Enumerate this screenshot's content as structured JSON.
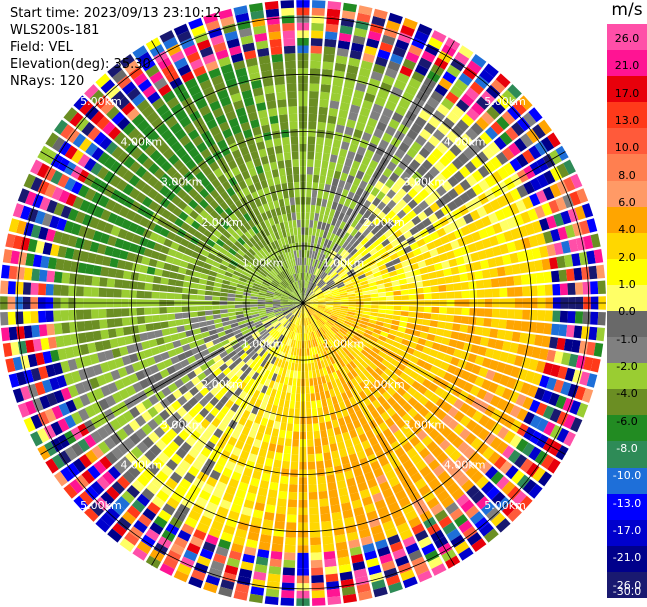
{
  "header": {
    "start_time": "Start time: 2023/09/13 23:10:12",
    "instrument": "WLS200s-181",
    "field": "Field: VEL",
    "elevation": "Elevation(deg): 35.30",
    "nrays": "NRays: 120"
  },
  "chart_data": {
    "type": "heatmap",
    "projection": "polar-ppi",
    "field": "VEL",
    "units": "m/s",
    "n_rays": 120,
    "elevation_deg": 35.3,
    "range_rings_km": [
      1.0,
      2.0,
      3.0,
      4.0,
      5.0
    ],
    "range_ring_labels": [
      "1.00km",
      "2.00km",
      "3.00km",
      "4.00km",
      "5.00km"
    ],
    "max_range_km": 5.3,
    "colorbar": {
      "unit": "m/s",
      "tick_labels": [
        "26.0",
        "21.0",
        "17.0",
        "13.0",
        "10.0",
        "8.0",
        "6.0",
        "4.0",
        "2.0",
        "1.0",
        "0.0",
        "-1.0",
        "-2.0",
        "-4.0",
        "-6.0",
        "-8.0",
        "-10.0",
        "-13.0",
        "-17.0",
        "-21.0",
        "-26.0",
        "-30.0"
      ],
      "bins": [
        {
          "low": 26,
          "high": 30,
          "color": "#ff4fa8"
        },
        {
          "low": 21,
          "high": 26,
          "color": "#ff1493"
        },
        {
          "low": 17,
          "high": 21,
          "color": "#e8000b"
        },
        {
          "low": 13,
          "high": 17,
          "color": "#ff3a1a"
        },
        {
          "low": 10,
          "high": 13,
          "color": "#ff5a3a"
        },
        {
          "low": 8,
          "high": 10,
          "color": "#ff7f50"
        },
        {
          "low": 6,
          "high": 8,
          "color": "#ff9a66"
        },
        {
          "low": 4,
          "high": 6,
          "color": "#ffa500"
        },
        {
          "low": 2,
          "high": 4,
          "color": "#ffd700"
        },
        {
          "low": 1,
          "high": 2,
          "color": "#ffff00"
        },
        {
          "low": 0,
          "high": 1,
          "color": "#ffff66"
        },
        {
          "low": -1,
          "high": 0,
          "color": "#696969"
        },
        {
          "low": -2,
          "high": -1,
          "color": "#808080"
        },
        {
          "low": -4,
          "high": -2,
          "color": "#9acd32"
        },
        {
          "low": -6,
          "high": -4,
          "color": "#6b8e23"
        },
        {
          "low": -8,
          "high": -6,
          "color": "#228b22"
        },
        {
          "low": -10,
          "high": -8,
          "color": "#2e8b57"
        },
        {
          "low": -13,
          "high": -10,
          "color": "#1e6fd9"
        },
        {
          "low": -17,
          "high": -13,
          "color": "#0000ff"
        },
        {
          "low": -21,
          "high": -17,
          "color": "#0000cd"
        },
        {
          "low": -26,
          "high": -21,
          "color": "#00008b"
        },
        {
          "low": -30,
          "high": -26,
          "color": "#191970"
        }
      ]
    },
    "velocity_pattern": {
      "approaching_mean": -6.0,
      "receding_mean": 5.0,
      "approaching_azimuth_deg": 315,
      "receding_azimuth_deg": 135
    },
    "grid": true
  }
}
